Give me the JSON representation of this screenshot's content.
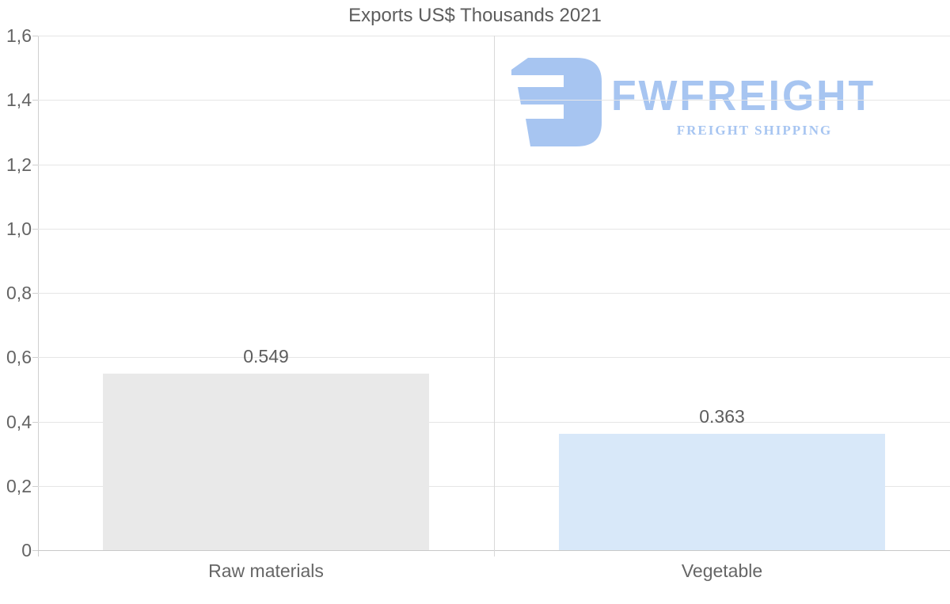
{
  "title": "Exports US$ Thousands 2021",
  "chart_data": {
    "type": "bar",
    "title": "Exports US$ Thousands 2021",
    "categories": [
      "Raw materials",
      "Vegetable"
    ],
    "values": [
      0.549,
      0.363
    ],
    "value_labels": [
      "0.549",
      "0.363"
    ],
    "bar_colors": [
      "#e9e9e9",
      "#d8e8f9"
    ],
    "xlabel": "",
    "ylabel": "",
    "ylim": [
      0,
      1.6
    ],
    "grid": true,
    "legend": "none",
    "y_ticks": [
      {
        "value": 0,
        "label": "0"
      },
      {
        "value": 0.2,
        "label": "0,2"
      },
      {
        "value": 0.4,
        "label": "0,4"
      },
      {
        "value": 0.6,
        "label": "0,6"
      },
      {
        "value": 0.8,
        "label": "0,8"
      },
      {
        "value": 1.0,
        "label": "1,0"
      },
      {
        "value": 1.2,
        "label": "1,2"
      },
      {
        "value": 1.4,
        "label": "1,4"
      },
      {
        "value": 1.6,
        "label": "1,6"
      }
    ]
  },
  "watermark": {
    "brand": "FWFREIGHT",
    "tagline": "FREIGHT SHIPPING",
    "logo_icon": "fwfreight-glyph",
    "color": "#a7c5f1"
  },
  "colors": {
    "background": "#ffffff",
    "gridline": "#e6e6e6",
    "axis": "#cfcfcf",
    "text": "#5d5d5d",
    "bar_raw_materials": "#e9e9e9",
    "bar_vegetable": "#d8e8f9",
    "logo_blue": "#a7c5f1"
  }
}
